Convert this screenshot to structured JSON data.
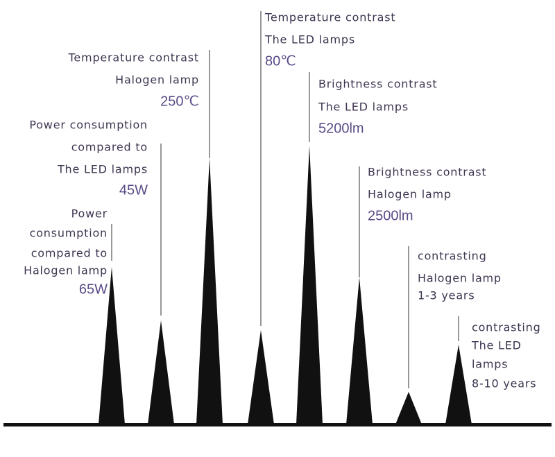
{
  "items": [
    {
      "lines": [
        "Power",
        "consumption",
        "compared to",
        "Halogen lamp"
      ],
      "value": "65W"
    },
    {
      "lines": [
        "Power consumption",
        "compared to",
        "The LED lamps"
      ],
      "value": "45W"
    },
    {
      "lines": [
        "Temperature contrast",
        "Halogen lamp"
      ],
      "value": "250℃"
    },
    {
      "lines": [
        "Temperature contrast",
        "The LED lamps"
      ],
      "value": "80℃"
    },
    {
      "lines": [
        "Brightness contrast",
        "The LED lamps"
      ],
      "value": "5200lm"
    },
    {
      "lines": [
        "Brightness contrast",
        "Halogen lamp"
      ],
      "value": "2500lm"
    },
    {
      "lines": [
        "contrasting",
        "Halogen lamp",
        "1-3 years"
      ]
    },
    {
      "lines": [
        "contrasting",
        "The LED",
        "lamps",
        "8-10 years"
      ]
    }
  ]
}
